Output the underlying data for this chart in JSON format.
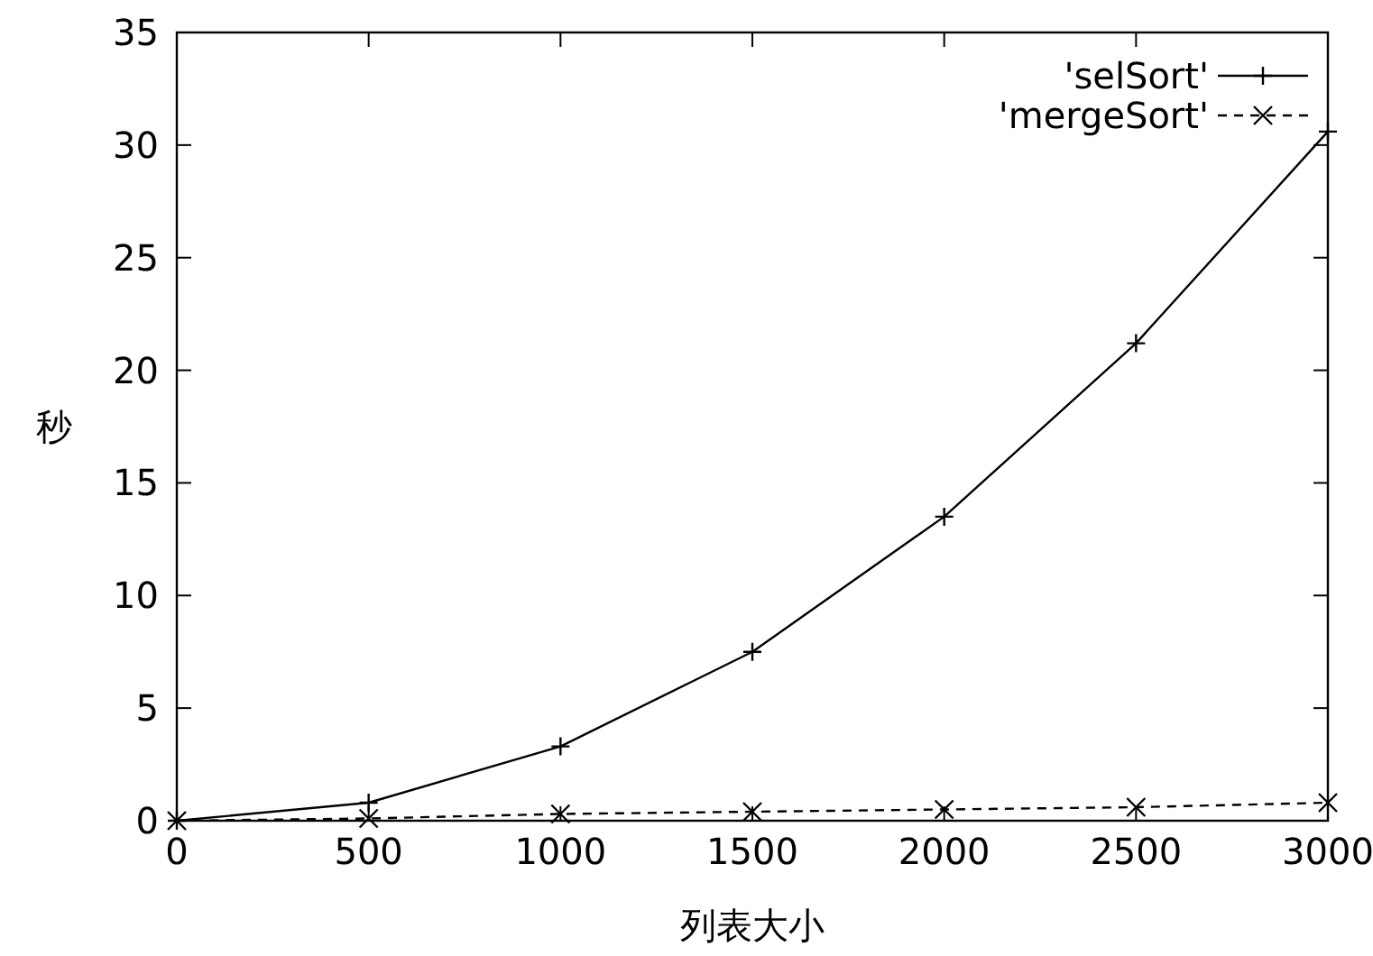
{
  "chart_data": {
    "type": "line",
    "xlabel": "列表大小",
    "ylabel": "秒",
    "x": [
      0,
      500,
      1000,
      1500,
      2000,
      2500,
      3000
    ],
    "series": [
      {
        "name": "'selSort'",
        "color": "#000000",
        "marker": "cross",
        "line_style": "solid",
        "values": [
          0,
          0.8,
          3.3,
          7.5,
          13.5,
          21.2,
          30.6
        ]
      },
      {
        "name": "'mergeSort'",
        "color": "#000000",
        "marker": "cross",
        "line_style": "dashed",
        "values": [
          0,
          0.1,
          0.3,
          0.4,
          0.5,
          0.6,
          0.8
        ]
      }
    ],
    "xlim": [
      0,
      3000
    ],
    "xticks": [
      0,
      500,
      1000,
      1500,
      2000,
      2500,
      3000
    ],
    "ylim": [
      0,
      35
    ],
    "yticks": [
      0,
      5,
      10,
      15,
      20,
      25,
      30,
      35
    ],
    "grid": false,
    "legend": "top right"
  }
}
